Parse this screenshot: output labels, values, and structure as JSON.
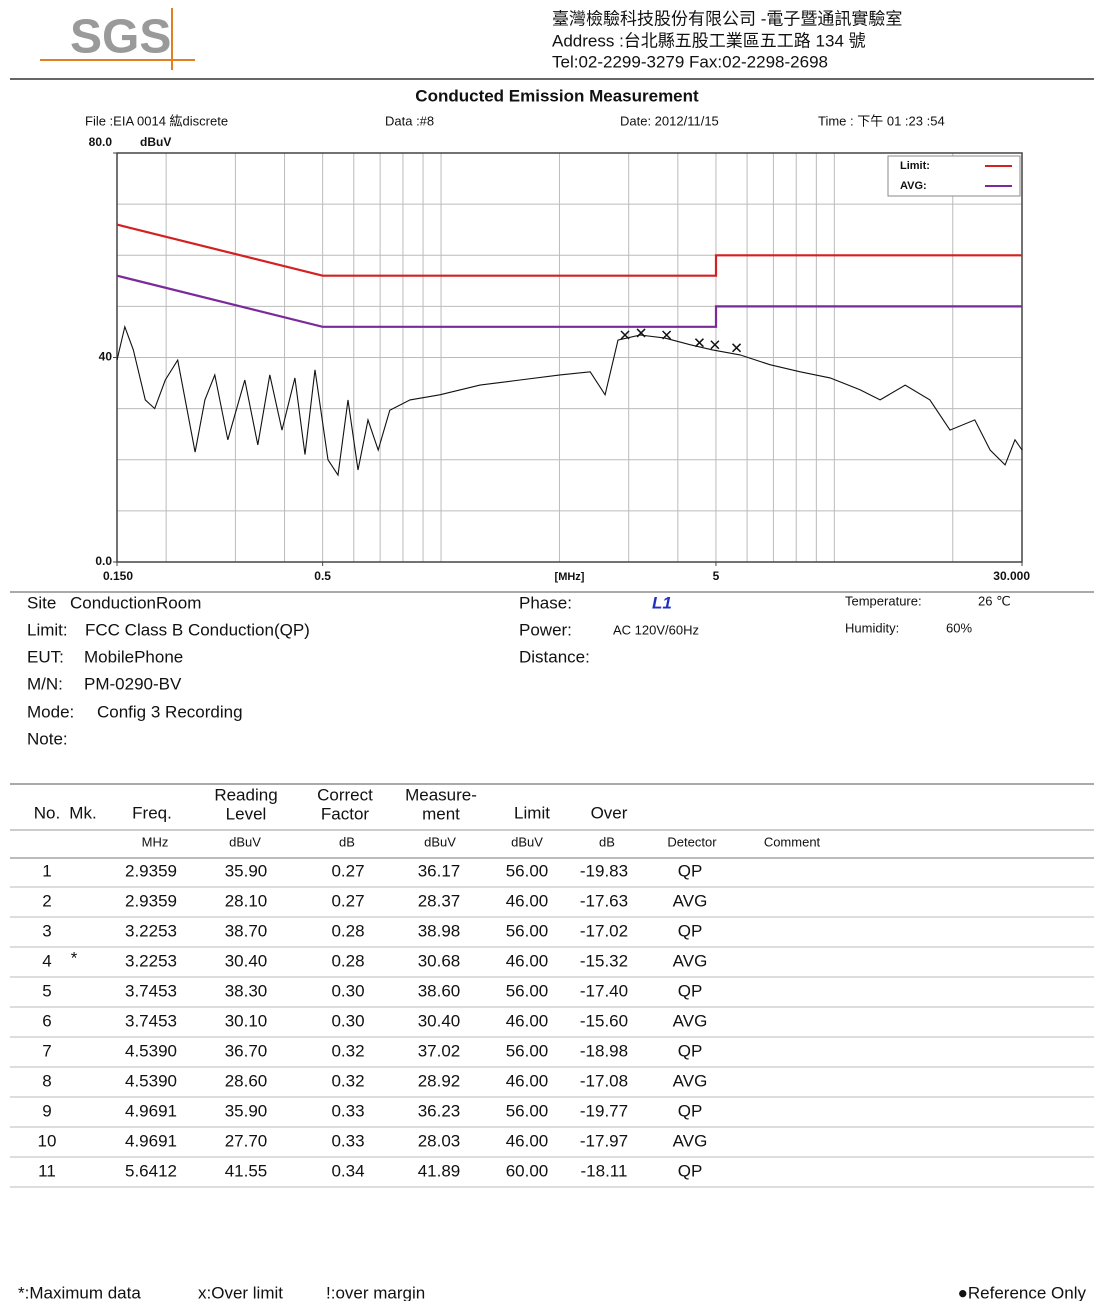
{
  "header": {
    "logo": "SGS",
    "company": "臺灣檢驗科技股份有限公司 -電子暨通訊實驗室",
    "address": "Address :台北縣五股工業區五工路 134 號",
    "tel": "Tel:02-2299-3279  Fax:02-2298-2698"
  },
  "title": "Conducted Emission Measurement",
  "file_info": {
    "file": "File :EIA 0014 紘discrete",
    "data": "Data :#8",
    "date": "Date: 2012/11/15",
    "time": "Time : 下午 01 :23 :54"
  },
  "chart": {
    "type": "line",
    "log_x": true,
    "xlim": [
      0.15,
      30
    ],
    "ylim": [
      0,
      80
    ],
    "xticks": [
      {
        "value": 0.15,
        "label": "0.150"
      },
      0.5,
      5,
      {
        "value": 30,
        "label": "30.000"
      }
    ],
    "xgrid": [
      0.2,
      0.3,
      0.4,
      0.5,
      0.6,
      0.7,
      0.8,
      0.9,
      1,
      2,
      3,
      4,
      5,
      6,
      7,
      8,
      9,
      10,
      20
    ],
    "yticks": [
      {
        "value": 0,
        "label": "0.0"
      },
      40,
      {
        "value": 80,
        "label": "80.0"
      }
    ],
    "ygrid": [
      10,
      20,
      30,
      40,
      50,
      60,
      70
    ],
    "x_label": "[MHz]",
    "y_label": "dBuV",
    "series": [
      {
        "name": "Limit:",
        "color": "#d42020",
        "x": [
          0.15,
          0.5,
          5,
          5,
          30
        ],
        "values": [
          66,
          56,
          56,
          60,
          60
        ]
      },
      {
        "name": "AVG:",
        "color": "#7a2a9a",
        "x": [
          0.15,
          0.5,
          5,
          5,
          30
        ],
        "values": [
          56,
          46,
          46,
          50,
          50
        ]
      }
    ],
    "trace": {
      "color": "#111",
      "x": [
        0.15,
        0.157,
        0.165,
        0.177,
        0.187,
        0.199,
        0.214,
        0.237,
        0.251,
        0.266,
        0.287,
        0.317,
        0.342,
        0.367,
        0.394,
        0.425,
        0.451,
        0.478,
        0.516,
        0.547,
        0.58,
        0.615,
        0.652,
        0.692,
        0.741,
        0.834,
        0.993,
        1.256,
        1.588,
        2.006,
        2.394,
        2.613,
        2.818,
        3.207,
        3.71,
        4.296,
        4.887,
        5.756,
        6.857,
        8.187,
        9.752,
        11.62,
        13.07,
        15.14,
        17.5,
        19.68,
        22.76,
        24.89,
        27.17,
        28.79,
        30
      ],
      "values": [
        39.5,
        46,
        41.5,
        31.7,
        30,
        35.6,
        39.5,
        21.5,
        31.7,
        36.6,
        23.9,
        35.6,
        22.9,
        36.6,
        25.8,
        36,
        21,
        37.6,
        20,
        17,
        31.7,
        18,
        27.8,
        21.9,
        29.7,
        31.7,
        32.7,
        34.6,
        35.6,
        36.6,
        37.2,
        32.7,
        43.4,
        44.4,
        43.8,
        42.5,
        41.5,
        40.5,
        38.6,
        37.2,
        36,
        33.7,
        31.7,
        34.6,
        31.7,
        25.8,
        27.8,
        21.9,
        19,
        23.9,
        21.9
      ]
    },
    "markers": {
      "x": [
        2.9359,
        3.2253,
        3.7453,
        4.539,
        4.9691,
        5.6412
      ],
      "values": [
        44.4,
        44.8,
        44.4,
        42.9,
        42.5,
        41.9
      ]
    }
  },
  "info": {
    "site": [
      "Site",
      "ConductionRoom"
    ],
    "limit": [
      "Limit:",
      "FCC Class B Conduction(QP)"
    ],
    "eut": [
      "EUT:",
      "MobilePhone"
    ],
    "mn": [
      "M/N:",
      "PM-0290-BV"
    ],
    "mode": [
      "Mode:",
      "Config 3 Recording"
    ],
    "note": [
      "Note:"
    ],
    "phase": [
      "Phase:",
      "L1"
    ],
    "power": [
      "Power:",
      "AC 120V/60Hz"
    ],
    "distance": [
      "Distance:"
    ],
    "temperature": [
      "Temperature:",
      "26 ℃"
    ],
    "humidity": [
      "Humidity:",
      "60%"
    ]
  },
  "table": {
    "headers": [
      [
        "No."
      ],
      [
        "Mk."
      ],
      [
        "Freq."
      ],
      [
        "Reading",
        "Level"
      ],
      [
        "Correct",
        "Factor"
      ],
      [
        "Measure-",
        "ment"
      ],
      [
        "Limit"
      ],
      [
        "Over"
      ]
    ],
    "units": [
      "MHz",
      "dBuV",
      "dB",
      "dBuV",
      "dBuV",
      "dB",
      "Detector",
      "Comment"
    ],
    "rows": [
      {
        "no": "1",
        "freq": "2.9359",
        "reading": "35.90",
        "correct": "0.27",
        "measure": "36.17",
        "limit": "56.00",
        "over": "-19.83",
        "detector": "QP"
      },
      {
        "no": "2",
        "freq": "2.9359",
        "reading": "28.10",
        "correct": "0.27",
        "measure": "28.37",
        "limit": "46.00",
        "over": "-17.63",
        "detector": "AVG"
      },
      {
        "no": "3",
        "freq": "3.2253",
        "reading": "38.70",
        "correct": "0.28",
        "measure": "38.98",
        "limit": "56.00",
        "over": "-17.02",
        "detector": "QP"
      },
      {
        "no": "4",
        "mk": "*",
        "freq": "3.2253",
        "reading": "30.40",
        "correct": "0.28",
        "measure": "30.68",
        "limit": "46.00",
        "over": "-15.32",
        "detector": "AVG"
      },
      {
        "no": "5",
        "freq": "3.7453",
        "reading": "38.30",
        "correct": "0.30",
        "measure": "38.60",
        "limit": "56.00",
        "over": "-17.40",
        "detector": "QP"
      },
      {
        "no": "6",
        "freq": "3.7453",
        "reading": "30.10",
        "correct": "0.30",
        "measure": "30.40",
        "limit": "46.00",
        "over": "-15.60",
        "detector": "AVG"
      },
      {
        "no": "7",
        "freq": "4.5390",
        "reading": "36.70",
        "correct": "0.32",
        "measure": "37.02",
        "limit": "56.00",
        "over": "-18.98",
        "detector": "QP"
      },
      {
        "no": "8",
        "freq": "4.5390",
        "reading": "28.60",
        "correct": "0.32",
        "measure": "28.92",
        "limit": "46.00",
        "over": "-17.08",
        "detector": "AVG"
      },
      {
        "no": "9",
        "freq": "4.9691",
        "reading": "35.90",
        "correct": "0.33",
        "measure": "36.23",
        "limit": "56.00",
        "over": "-19.77",
        "detector": "QP"
      },
      {
        "no": "10",
        "freq": "4.9691",
        "reading": "27.70",
        "correct": "0.33",
        "measure": "28.03",
        "limit": "46.00",
        "over": "-17.97",
        "detector": "AVG"
      },
      {
        "no": "11",
        "freq": "5.6412",
        "reading": "41.55",
        "correct": "0.34",
        "measure": "41.89",
        "limit": "60.00",
        "over": "-18.11",
        "detector": "QP"
      }
    ]
  },
  "footer": {
    "max": "*:Maximum data",
    "over": "x:Over limit",
    "margin": "!:over margin",
    "ref": "●Reference Only"
  }
}
